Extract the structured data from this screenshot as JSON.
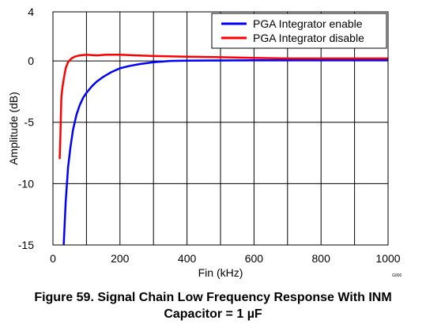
{
  "chart_data": {
    "type": "line",
    "title": "",
    "xlabel": "Fin (kHz)",
    "ylabel": "Amplitude (dB)",
    "xlim": [
      0,
      1000
    ],
    "ylim": [
      -15,
      4
    ],
    "x_ticks": [
      0,
      200,
      400,
      600,
      800,
      1000
    ],
    "y_ticks": [
      4,
      0,
      -5,
      -10,
      -15
    ],
    "x_tick_labels": [
      "0",
      "200",
      "400",
      "600",
      "800",
      "1000"
    ],
    "y_tick_labels": [
      "4",
      "0",
      "-5",
      "-10",
      "-15"
    ],
    "grid": true,
    "legend_position": "top-right",
    "series": [
      {
        "name": "PGA Integrator enable",
        "color": "#0000ff",
        "x": [
          32,
          38,
          45,
          52,
          60,
          70,
          80,
          90,
          100,
          115,
          130,
          150,
          175,
          200,
          230,
          260,
          300,
          350,
          400,
          500,
          600,
          700,
          800,
          900,
          1000
        ],
        "y": [
          -15,
          -11.5,
          -8.7,
          -7.1,
          -5.6,
          -4.4,
          -3.6,
          -3.0,
          -2.6,
          -2.1,
          -1.7,
          -1.3,
          -0.9,
          -0.6,
          -0.4,
          -0.25,
          -0.1,
          0.0,
          0.02,
          0.04,
          0.05,
          0.05,
          0.05,
          0.05,
          0.05
        ]
      },
      {
        "name": "PGA Integrator  disable",
        "color": "#ff0000",
        "x": [
          20,
          22,
          25,
          28,
          32,
          38,
          45,
          55,
          65,
          80,
          100,
          130,
          160,
          200,
          250,
          300,
          400,
          500,
          600,
          700,
          800,
          900,
          1000
        ],
        "y": [
          -8.0,
          -6.4,
          -3.0,
          -2.2,
          -1.5,
          -0.6,
          -0.1,
          0.2,
          0.35,
          0.45,
          0.5,
          0.45,
          0.5,
          0.5,
          0.45,
          0.4,
          0.35,
          0.3,
          0.25,
          0.2,
          0.2,
          0.2,
          0.2
        ]
      }
    ]
  },
  "figure": {
    "caption_line1": "Figure 59. Signal Chain Low Frequency Response With INM",
    "caption_line2": "Capacitor = 1 µF",
    "code": "G000"
  }
}
